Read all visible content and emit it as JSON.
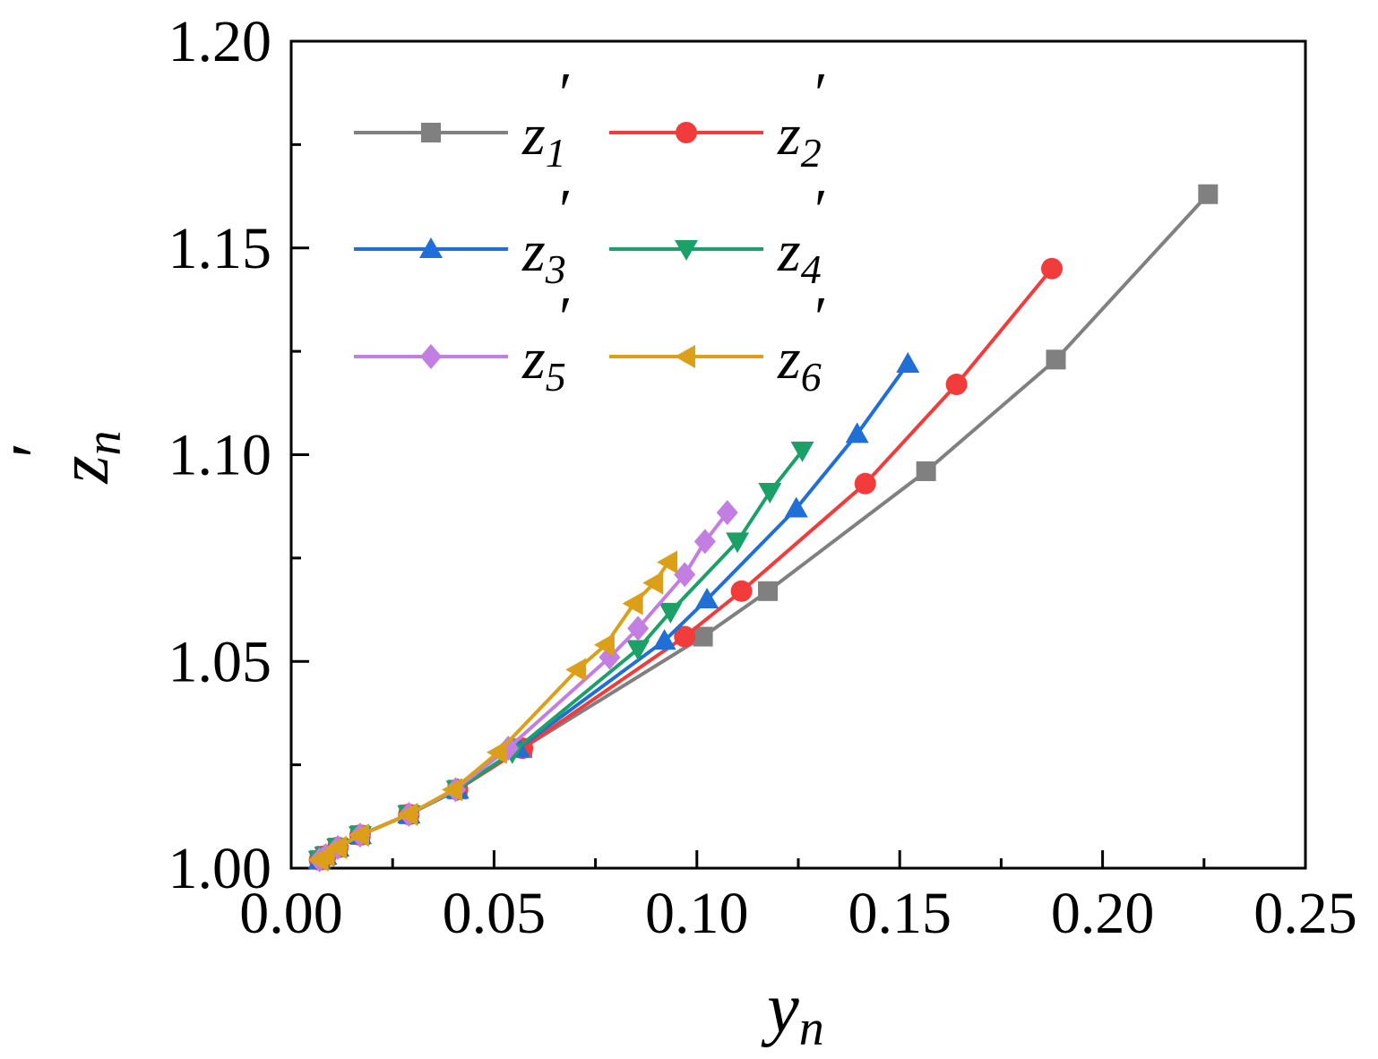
{
  "chart_data": {
    "type": "line",
    "title": "",
    "xlabel": "y",
    "xlabel_sub": "n",
    "ylabel": "z",
    "ylabel_sub": "n",
    "ylabel_prime": "′",
    "xlim": [
      0.0,
      0.25
    ],
    "ylim": [
      1.0,
      1.2
    ],
    "xticks": [
      "0.00",
      "0.05",
      "0.10",
      "0.15",
      "0.20",
      "0.25"
    ],
    "yticks": [
      "1.00",
      "1.05",
      "1.10",
      "1.15",
      "1.20"
    ],
    "xtick_values": [
      0.0,
      0.05,
      0.1,
      0.15,
      0.2,
      0.25
    ],
    "ytick_values": [
      1.0,
      1.05,
      1.1,
      1.15,
      1.2
    ],
    "grid": false,
    "legend_position": "top-left",
    "series": [
      {
        "name": "z",
        "sub": "1",
        "prime": "′",
        "color": "#808080",
        "marker": "square",
        "x": [
          0.007,
          0.0085,
          0.0115,
          0.017,
          0.029,
          0.041,
          0.057,
          0.1015,
          0.1175,
          0.1565,
          0.1885,
          0.226
        ],
        "y": [
          1.002,
          1.003,
          1.005,
          1.008,
          1.013,
          1.019,
          1.029,
          1.056,
          1.067,
          1.096,
          1.123,
          1.163
        ]
      },
      {
        "name": "z",
        "sub": "2",
        "prime": "′",
        "color": "#f23c3c",
        "marker": "circle",
        "x": [
          0.007,
          0.0085,
          0.0115,
          0.017,
          0.029,
          0.041,
          0.057,
          0.097,
          0.111,
          0.1415,
          0.164,
          0.1875
        ],
        "y": [
          1.002,
          1.003,
          1.005,
          1.008,
          1.013,
          1.019,
          1.029,
          1.056,
          1.067,
          1.093,
          1.117,
          1.145
        ]
      },
      {
        "name": "z",
        "sub": "3",
        "prime": "′",
        "color": "#1f6fd6",
        "marker": "triangle-up",
        "x": [
          0.007,
          0.0085,
          0.0115,
          0.017,
          0.029,
          0.041,
          0.056,
          0.092,
          0.1025,
          0.1245,
          0.1395,
          0.152
        ],
        "y": [
          1.002,
          1.003,
          1.005,
          1.008,
          1.013,
          1.019,
          1.029,
          1.055,
          1.065,
          1.087,
          1.105,
          1.122
        ]
      },
      {
        "name": "z",
        "sub": "4",
        "prime": "′",
        "color": "#1ba168",
        "marker": "triangle-down",
        "x": [
          0.007,
          0.0085,
          0.0115,
          0.017,
          0.029,
          0.041,
          0.0545,
          0.0855,
          0.0935,
          0.11,
          0.118,
          0.126
        ],
        "y": [
          1.002,
          1.003,
          1.005,
          1.008,
          1.013,
          1.019,
          1.028,
          1.053,
          1.062,
          1.079,
          1.091,
          1.101
        ]
      },
      {
        "name": "z",
        "sub": "5",
        "prime": "′",
        "color": "#c27ee0",
        "marker": "diamond",
        "x": [
          0.007,
          0.0085,
          0.0115,
          0.017,
          0.029,
          0.0405,
          0.0535,
          0.0785,
          0.0855,
          0.097,
          0.102,
          0.1075
        ],
        "y": [
          1.002,
          1.003,
          1.005,
          1.008,
          1.013,
          1.019,
          1.029,
          1.051,
          1.058,
          1.071,
          1.079,
          1.086
        ]
      },
      {
        "name": "z",
        "sub": "6",
        "prime": "′",
        "color": "#dba017",
        "marker": "triangle-left",
        "x": [
          0.007,
          0.0085,
          0.0115,
          0.017,
          0.029,
          0.04,
          0.051,
          0.0705,
          0.0775,
          0.0845,
          0.0895,
          0.093
        ],
        "y": [
          1.002,
          1.003,
          1.005,
          1.008,
          1.013,
          1.019,
          1.028,
          1.048,
          1.054,
          1.064,
          1.069,
          1.074
        ]
      }
    ]
  }
}
